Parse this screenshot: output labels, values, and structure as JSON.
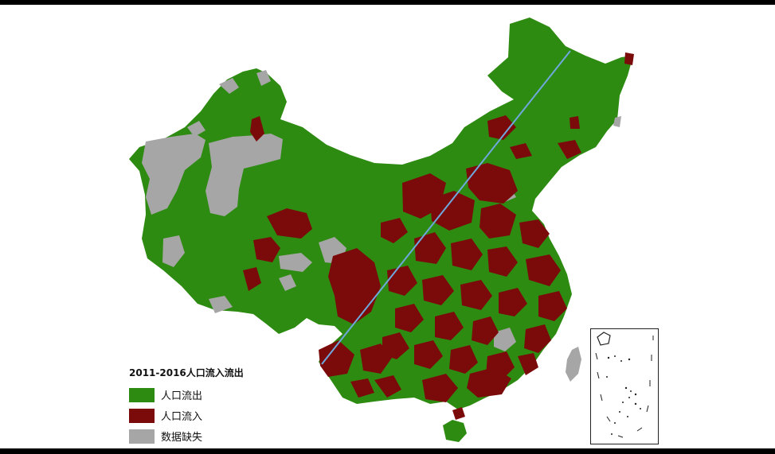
{
  "legend": {
    "title": "2011-2016人口流入流出",
    "items": [
      {
        "label": "人口流出",
        "color": "#2e8b12"
      },
      {
        "label": "人口流入",
        "color": "#7b0a0a"
      },
      {
        "label": "数据缺失",
        "color": "#a6a6a6"
      }
    ]
  },
  "colors": {
    "outflow": "#2e8b12",
    "inflow": "#7b0a0a",
    "missing": "#a6a6a6",
    "divide_line": "#6fa8dc"
  }
}
